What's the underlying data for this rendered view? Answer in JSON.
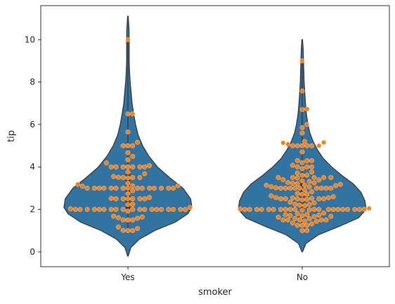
{
  "chart_data": {
    "type": "violin",
    "title": "",
    "xlabel": "smoker",
    "ylabel": "tip",
    "categories": [
      "Yes",
      "No"
    ],
    "ylim": [
      -0.7,
      11.6
    ],
    "yticks": [
      0,
      2,
      4,
      6,
      8,
      10
    ],
    "grid": false,
    "violin_color": "#3274a1",
    "point_color": "#ff7f0e",
    "edge_color": "#3b3b3b",
    "distributions": [
      {
        "category": "Yes",
        "min": 1.0,
        "q1": 2.0,
        "median": 3.0,
        "q3": 3.68,
        "max": 10.0,
        "density_profile": [
          [
            -0.2,
            0.004
          ],
          [
            0.2,
            0.045
          ],
          [
            0.6,
            0.18
          ],
          [
            1.0,
            0.42
          ],
          [
            1.4,
            0.74
          ],
          [
            1.8,
            0.94
          ],
          [
            2.1,
            1.0
          ],
          [
            2.5,
            0.98
          ],
          [
            3.0,
            0.86
          ],
          [
            3.5,
            0.65
          ],
          [
            4.0,
            0.46
          ],
          [
            4.5,
            0.33
          ],
          [
            5.0,
            0.23
          ],
          [
            5.5,
            0.16
          ],
          [
            6.0,
            0.12
          ],
          [
            6.5,
            0.09
          ],
          [
            7.0,
            0.065
          ],
          [
            7.5,
            0.05
          ],
          [
            8.0,
            0.035
          ],
          [
            8.5,
            0.025
          ],
          [
            9.0,
            0.02
          ],
          [
            9.5,
            0.02
          ],
          [
            10.0,
            0.02
          ],
          [
            10.5,
            0.018
          ],
          [
            11.1,
            0.004
          ]
        ],
        "tips": [
          1.0,
          1.0,
          1.01,
          1.1,
          1.17,
          1.5,
          1.5,
          1.5,
          1.58,
          1.61,
          1.64,
          1.68,
          1.92,
          2.0,
          2.0,
          2.0,
          2.0,
          2.0,
          2.0,
          2.0,
          2.0,
          2.0,
          2.0,
          2.0,
          2.0,
          2.0,
          2.0,
          2.0,
          2.0,
          2.0,
          2.0,
          2.0,
          2.03,
          2.09,
          2.23,
          2.24,
          2.5,
          2.5,
          2.5,
          2.5,
          2.5,
          2.5,
          2.52,
          2.56,
          2.74,
          2.88,
          3.0,
          3.0,
          3.0,
          3.0,
          3.0,
          3.0,
          3.0,
          3.0,
          3.0,
          3.0,
          3.0,
          3.0,
          3.0,
          3.0,
          3.0,
          3.09,
          3.11,
          3.12,
          3.18,
          3.23,
          3.48,
          3.5,
          3.5,
          3.5,
          3.51,
          3.55,
          3.68,
          3.76,
          4.0,
          4.0,
          4.0,
          4.0,
          4.0,
          4.0,
          4.0,
          4.06,
          4.19,
          4.34,
          4.5,
          4.67,
          5.0,
          5.0,
          5.0,
          5.16,
          5.65,
          6.5,
          6.5,
          10.0
        ]
      },
      {
        "category": "No",
        "min": 1.0,
        "q1": 2.0,
        "median": 2.74,
        "q3": 3.51,
        "max": 9.0,
        "density_profile": [
          [
            0.0,
            0.004
          ],
          [
            0.4,
            0.06
          ],
          [
            0.8,
            0.25
          ],
          [
            1.2,
            0.58
          ],
          [
            1.6,
            0.88
          ],
          [
            2.0,
            1.0
          ],
          [
            2.4,
            0.98
          ],
          [
            2.8,
            0.92
          ],
          [
            3.2,
            0.8
          ],
          [
            3.6,
            0.62
          ],
          [
            4.0,
            0.46
          ],
          [
            4.4,
            0.33
          ],
          [
            4.8,
            0.24
          ],
          [
            5.2,
            0.17
          ],
          [
            5.6,
            0.12
          ],
          [
            6.0,
            0.09
          ],
          [
            6.5,
            0.065
          ],
          [
            7.0,
            0.05
          ],
          [
            7.5,
            0.04
          ],
          [
            8.0,
            0.03
          ],
          [
            8.5,
            0.025
          ],
          [
            9.0,
            0.02
          ],
          [
            9.5,
            0.015
          ],
          [
            10.0,
            0.004
          ]
        ],
        "tips": [
          1.0,
          1.0,
          1.25,
          1.25,
          1.25,
          1.32,
          1.36,
          1.44,
          1.45,
          1.5,
          1.5,
          1.5,
          1.5,
          1.5,
          1.56,
          1.57,
          1.63,
          1.66,
          1.67,
          1.7,
          1.71,
          1.73,
          1.75,
          1.76,
          1.8,
          1.83,
          1.96,
          1.98,
          2.0,
          2.0,
          2.0,
          2.0,
          2.0,
          2.0,
          2.0,
          2.0,
          2.0,
          2.0,
          2.0,
          2.0,
          2.0,
          2.0,
          2.0,
          2.0,
          2.0,
          2.0,
          2.0,
          2.01,
          2.02,
          2.05,
          2.18,
          2.2,
          2.23,
          2.24,
          2.31,
          2.34,
          2.45,
          2.47,
          2.5,
          2.5,
          2.5,
          2.5,
          2.5,
          2.52,
          2.54,
          2.55,
          2.56,
          2.6,
          2.64,
          2.71,
          2.72,
          2.75,
          2.83,
          2.92,
          3.0,
          3.0,
          3.0,
          3.0,
          3.0,
          3.0,
          3.0,
          3.0,
          3.0,
          3.02,
          3.06,
          3.07,
          3.12,
          3.14,
          3.15,
          3.18,
          3.21,
          3.23,
          3.25,
          3.27,
          3.31,
          3.35,
          3.39,
          3.4,
          3.48,
          3.5,
          3.5,
          3.5,
          3.5,
          3.5,
          3.6,
          3.61,
          3.71,
          3.76,
          3.92,
          4.0,
          4.0,
          4.0,
          4.08,
          4.2,
          4.29,
          4.3,
          4.3,
          4.71,
          5.0,
          5.0,
          5.0,
          5.0,
          5.0,
          5.0,
          5.07,
          5.14,
          5.15,
          5.2,
          5.6,
          5.85,
          6.0,
          6.7,
          6.73,
          7.58,
          9.0
        ]
      }
    ]
  }
}
